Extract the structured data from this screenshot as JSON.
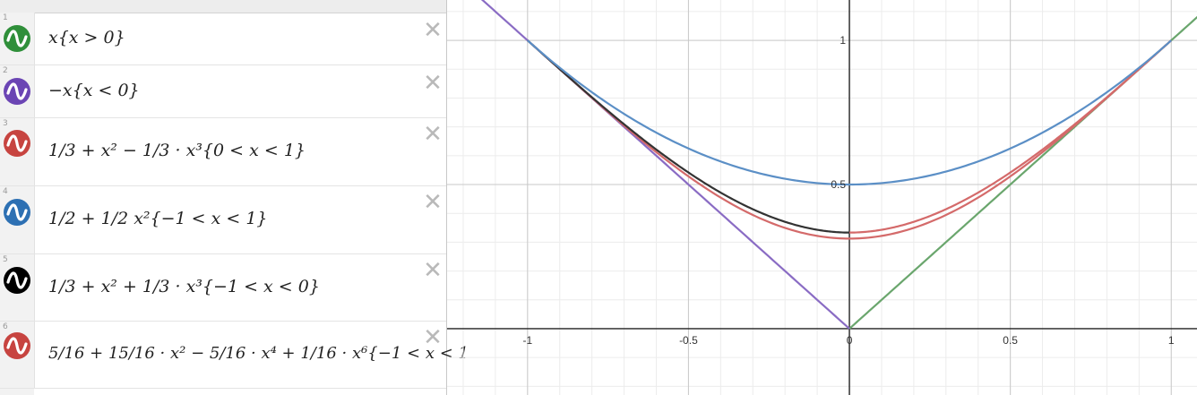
{
  "expressions": [
    {
      "index": "1",
      "color": "#2f8f3a",
      "text": "x{x > 0}"
    },
    {
      "index": "2",
      "color": "#6b45b4",
      "text": "−x{x < 0}"
    },
    {
      "index": "3",
      "color": "#c74440",
      "text": "1/3 + x² − 1/3 · x³{0 < x < 1}"
    },
    {
      "index": "4",
      "color": "#2d70b3",
      "text": "1/2 + 1/2 x²{−1 < x < 1}"
    },
    {
      "index": "5",
      "color": "#000000",
      "text": "1/3 + x² + 1/3 · x³{−1 < x < 0}"
    },
    {
      "index": "6",
      "color": "#c74440",
      "text": "5/16 + 15/16 · x² − 5/16 · x⁴ + 1/16 · x⁶{−1 < x < 1"
    }
  ],
  "delete_glyph": "✕",
  "graph": {
    "x_ticks": [
      "-1",
      "-0.5",
      "0",
      "0.5",
      "1"
    ],
    "y_ticks": [
      "0.5",
      "1"
    ],
    "x_range": [
      -1.25,
      1.08
    ],
    "y_range": [
      -0.23,
      1.14
    ],
    "curve_colors": {
      "green": "#6aa66d",
      "purple": "#8a6cc4",
      "red": "#d46a6a",
      "blue": "#5b8fc6",
      "black": "#333333"
    }
  }
}
